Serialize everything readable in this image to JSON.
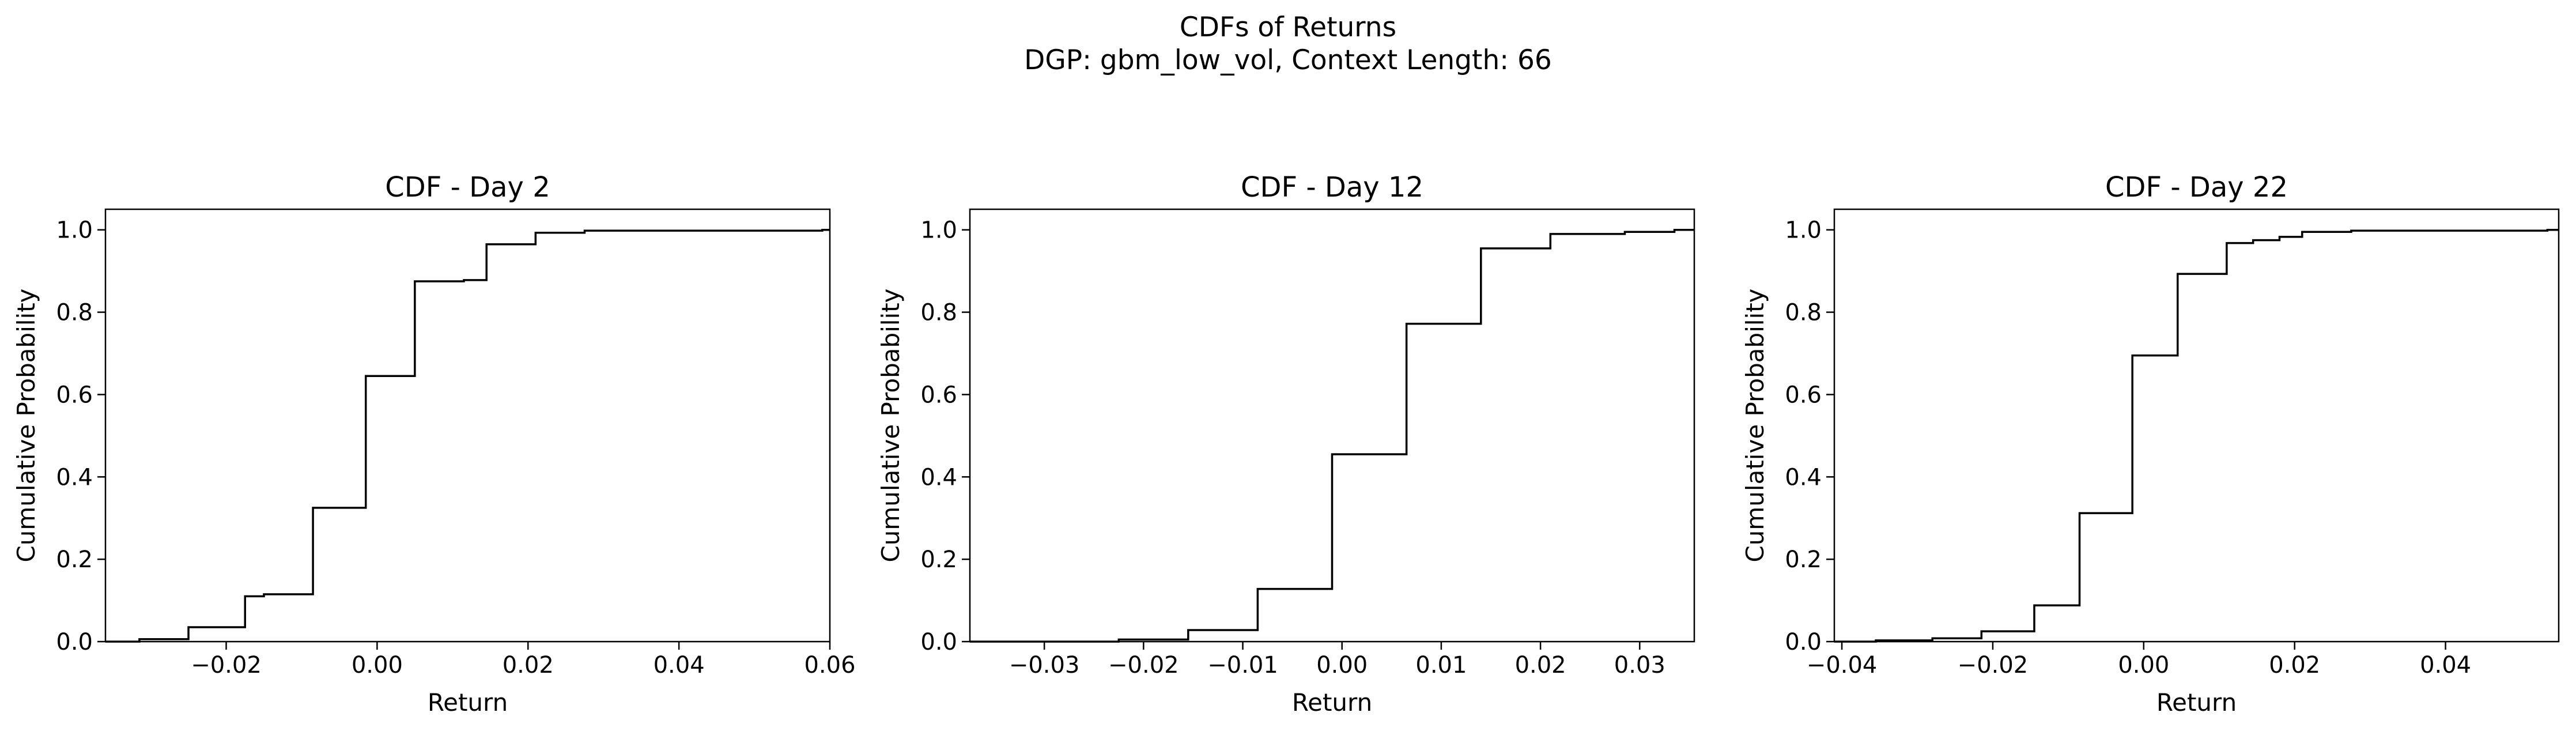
{
  "figure": {
    "title": "CDFs of Returns",
    "subtitle": "DGP: gbm_low_vol, Context Length: 66"
  },
  "chart_data": [
    {
      "type": "line",
      "step": "post",
      "title": "CDF - Day 2",
      "xlabel": "Return",
      "ylabel": "Cumulative Probability",
      "xlim": [
        -0.036,
        0.06
      ],
      "ylim": [
        0.0,
        1.05
      ],
      "xticks": [
        -0.02,
        0.0,
        0.02,
        0.04,
        0.06
      ],
      "xtick_labels": [
        "−0.02",
        "0.00",
        "0.02",
        "0.04",
        "0.06"
      ],
      "yticks": [
        0.0,
        0.2,
        0.4,
        0.6,
        0.8,
        1.0
      ],
      "ytick_labels": [
        "0.0",
        "0.2",
        "0.4",
        "0.6",
        "0.8",
        "1.0"
      ],
      "grid": false,
      "series": [
        {
          "x": [
            -0.036,
            -0.0315,
            -0.025,
            -0.0175,
            -0.015,
            -0.0085,
            -0.0015,
            0.005,
            0.0115,
            0.0145,
            0.021,
            0.0275,
            0.059,
            0.06
          ],
          "y": [
            0.0,
            0.006,
            0.035,
            0.11,
            0.115,
            0.325,
            0.645,
            0.875,
            0.878,
            0.965,
            0.993,
            0.998,
            1.0,
            1.0
          ]
        }
      ]
    },
    {
      "type": "line",
      "step": "post",
      "title": "CDF - Day 12",
      "xlabel": "Return",
      "ylabel": "Cumulative Probability",
      "xlim": [
        -0.0375,
        0.0355
      ],
      "ylim": [
        0.0,
        1.05
      ],
      "xticks": [
        -0.03,
        -0.02,
        -0.01,
        0.0,
        0.01,
        0.02,
        0.03
      ],
      "xtick_labels": [
        "−0.03",
        "−0.02",
        "−0.01",
        "0.00",
        "0.01",
        "0.02",
        "0.03"
      ],
      "yticks": [
        0.0,
        0.2,
        0.4,
        0.6,
        0.8,
        1.0
      ],
      "ytick_labels": [
        "0.0",
        "0.2",
        "0.4",
        "0.6",
        "0.8",
        "1.0"
      ],
      "grid": false,
      "series": [
        {
          "x": [
            -0.0375,
            -0.0225,
            -0.0155,
            -0.0085,
            -0.001,
            0.0065,
            0.014,
            0.021,
            0.0285,
            0.0335,
            0.0355
          ],
          "y": [
            0.0,
            0.005,
            0.028,
            0.128,
            0.455,
            0.772,
            0.955,
            0.99,
            0.995,
            1.0,
            1.0
          ]
        }
      ]
    },
    {
      "type": "line",
      "step": "post",
      "title": "CDF - Day 22",
      "xlabel": "Return",
      "ylabel": "Cumulative Probability",
      "xlim": [
        -0.041,
        0.055
      ],
      "ylim": [
        0.0,
        1.05
      ],
      "xticks": [
        -0.04,
        -0.02,
        0.0,
        0.02,
        0.04
      ],
      "xtick_labels": [
        "−0.04",
        "−0.02",
        "0.00",
        "0.02",
        "0.04"
      ],
      "yticks": [
        0.0,
        0.2,
        0.4,
        0.6,
        0.8,
        1.0
      ],
      "ytick_labels": [
        "0.0",
        "0.2",
        "0.4",
        "0.6",
        "0.8",
        "1.0"
      ],
      "grid": false,
      "series": [
        {
          "x": [
            -0.041,
            -0.0355,
            -0.028,
            -0.0215,
            -0.0145,
            -0.0085,
            -0.0015,
            0.0045,
            0.011,
            0.0145,
            0.018,
            0.021,
            0.0275,
            0.0535,
            0.055
          ],
          "y": [
            0.0,
            0.003,
            0.008,
            0.025,
            0.088,
            0.312,
            0.695,
            0.893,
            0.968,
            0.975,
            0.983,
            0.995,
            0.998,
            1.0,
            1.0
          ]
        }
      ]
    }
  ]
}
